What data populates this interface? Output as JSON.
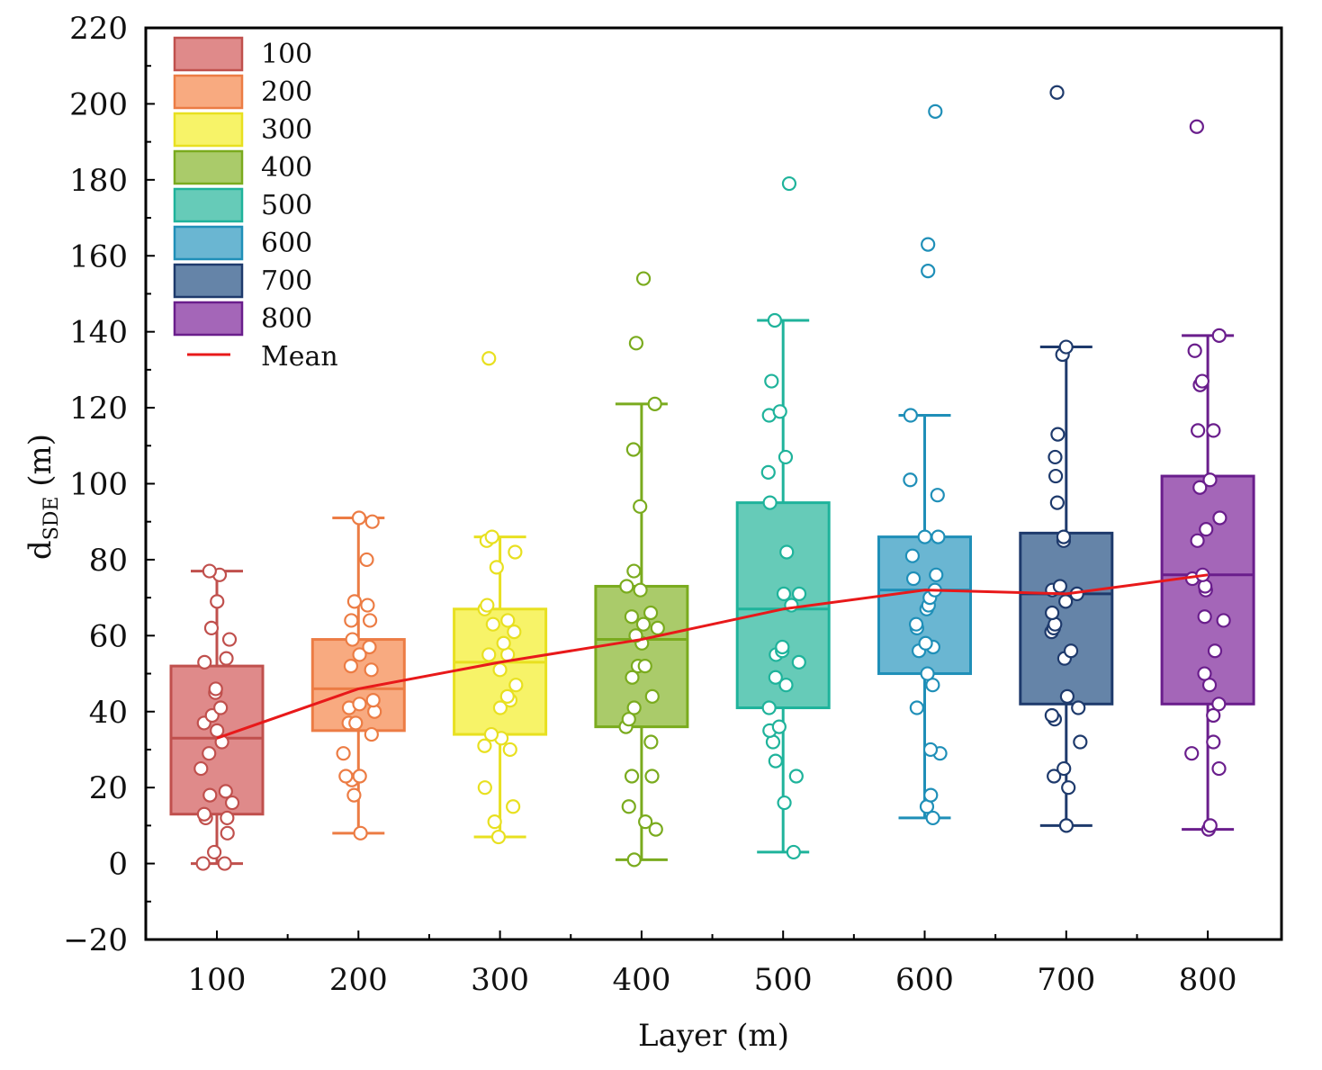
{
  "chart_data": {
    "type": "box",
    "title": "",
    "xlabel": "Layer (m)",
    "ylabel_main": "d",
    "ylabel_sub": "SDE",
    "ylabel_unit": " (m)",
    "ylim": [
      -20,
      220
    ],
    "yticks": [
      -20,
      0,
      20,
      40,
      60,
      80,
      100,
      120,
      140,
      160,
      180,
      200,
      220
    ],
    "categories": [
      "100",
      "200",
      "300",
      "400",
      "500",
      "600",
      "700",
      "800"
    ],
    "colors": {
      "100": {
        "fill": "#df8a8a",
        "stroke": "#c0504d"
      },
      "200": {
        "fill": "#f8aa80",
        "stroke": "#ec7c44"
      },
      "300": {
        "fill": "#f7f368",
        "stroke": "#e8e020"
      },
      "400": {
        "fill": "#aacb6a",
        "stroke": "#7aab1e"
      },
      "500": {
        "fill": "#66cbb8",
        "stroke": "#1fb39b"
      },
      "600": {
        "fill": "#6ab6d2",
        "stroke": "#1f8fb8"
      },
      "700": {
        "fill": "#6584a8",
        "stroke": "#1e3a6c"
      },
      "800": {
        "fill": "#a466b8",
        "stroke": "#6a1e8c"
      }
    },
    "boxes": [
      {
        "category": "100",
        "whisker_low": 0,
        "q1": 13,
        "median": 33,
        "q3": 52,
        "whisker_high": 77,
        "mean": 33,
        "points": [
          0,
          0,
          3,
          8,
          12,
          12,
          13,
          16,
          18,
          19,
          25,
          29,
          32,
          35,
          37,
          39,
          41,
          45,
          46,
          53,
          54,
          59,
          62,
          69,
          76,
          77
        ],
        "outliers": []
      },
      {
        "category": "200",
        "whisker_low": 8,
        "q1": 35,
        "median": 46,
        "q3": 59,
        "whisker_high": 91,
        "mean": 46,
        "points": [
          8,
          18,
          22,
          23,
          23,
          29,
          34,
          37,
          37,
          40,
          41,
          42,
          43,
          51,
          52,
          55,
          57,
          59,
          64,
          64,
          68,
          69,
          80,
          90,
          91
        ],
        "outliers": []
      },
      {
        "category": "300",
        "whisker_low": 7,
        "q1": 34,
        "median": 53,
        "q3": 67,
        "whisker_high": 86,
        "mean": 53,
        "points": [
          7,
          11,
          15,
          20,
          30,
          31,
          33,
          34,
          41,
          43,
          44,
          47,
          51,
          55,
          55,
          58,
          61,
          63,
          64,
          67,
          68,
          78,
          82,
          85,
          86
        ],
        "outliers": [
          133
        ]
      },
      {
        "category": "400",
        "whisker_low": 1,
        "q1": 36,
        "median": 59,
        "q3": 73,
        "whisker_high": 121,
        "mean": 59,
        "points": [
          1,
          9,
          11,
          15,
          23,
          23,
          32,
          36,
          38,
          41,
          44,
          49,
          52,
          52,
          58,
          60,
          62,
          63,
          65,
          66,
          72,
          73,
          77,
          94,
          109,
          121
        ],
        "outliers": [
          137,
          154
        ]
      },
      {
        "category": "500",
        "whisker_low": 3,
        "q1": 41,
        "median": 67,
        "q3": 95,
        "whisker_high": 143,
        "mean": 67,
        "points": [
          3,
          16,
          23,
          27,
          32,
          35,
          36,
          41,
          47,
          49,
          53,
          55,
          56,
          57,
          68,
          71,
          71,
          82,
          95,
          103,
          107,
          118,
          119,
          127,
          143
        ],
        "outliers": [
          179
        ]
      },
      {
        "category": "600",
        "whisker_low": 12,
        "q1": 50,
        "median": 72,
        "q3": 86,
        "whisker_high": 118,
        "mean": 72,
        "points": [
          12,
          15,
          18,
          29,
          30,
          41,
          47,
          50,
          56,
          57,
          58,
          62,
          63,
          67,
          68,
          70,
          72,
          75,
          76,
          81,
          86,
          86,
          97,
          101,
          118
        ],
        "outliers": [
          156,
          163,
          198
        ]
      },
      {
        "category": "700",
        "whisker_low": 10,
        "q1": 42,
        "median": 71,
        "q3": 87,
        "whisker_high": 136,
        "mean": 71,
        "points": [
          10,
          20,
          23,
          25,
          32,
          38,
          39,
          41,
          44,
          54,
          56,
          61,
          62,
          63,
          66,
          69,
          71,
          72,
          73,
          85,
          86,
          95,
          102,
          107,
          113,
          134,
          136
        ],
        "outliers": [
          203
        ]
      },
      {
        "category": "800",
        "whisker_low": 9,
        "q1": 42,
        "median": 76,
        "q3": 102,
        "whisker_high": 139,
        "mean": 76,
        "points": [
          9,
          10,
          25,
          29,
          32,
          39,
          42,
          47,
          50,
          56,
          64,
          65,
          72,
          73,
          75,
          76,
          85,
          88,
          91,
          99,
          101,
          114,
          114,
          126,
          127,
          135,
          139
        ],
        "outliers": [
          194
        ]
      }
    ],
    "mean_line": {
      "label": "Mean",
      "color": "#e8191a",
      "values": [
        33,
        46,
        53,
        59,
        67,
        72,
        71,
        76
      ]
    },
    "legend": {
      "placement": "top-left",
      "entries": [
        "100",
        "200",
        "300",
        "400",
        "500",
        "600",
        "700",
        "800",
        "Mean"
      ]
    }
  }
}
